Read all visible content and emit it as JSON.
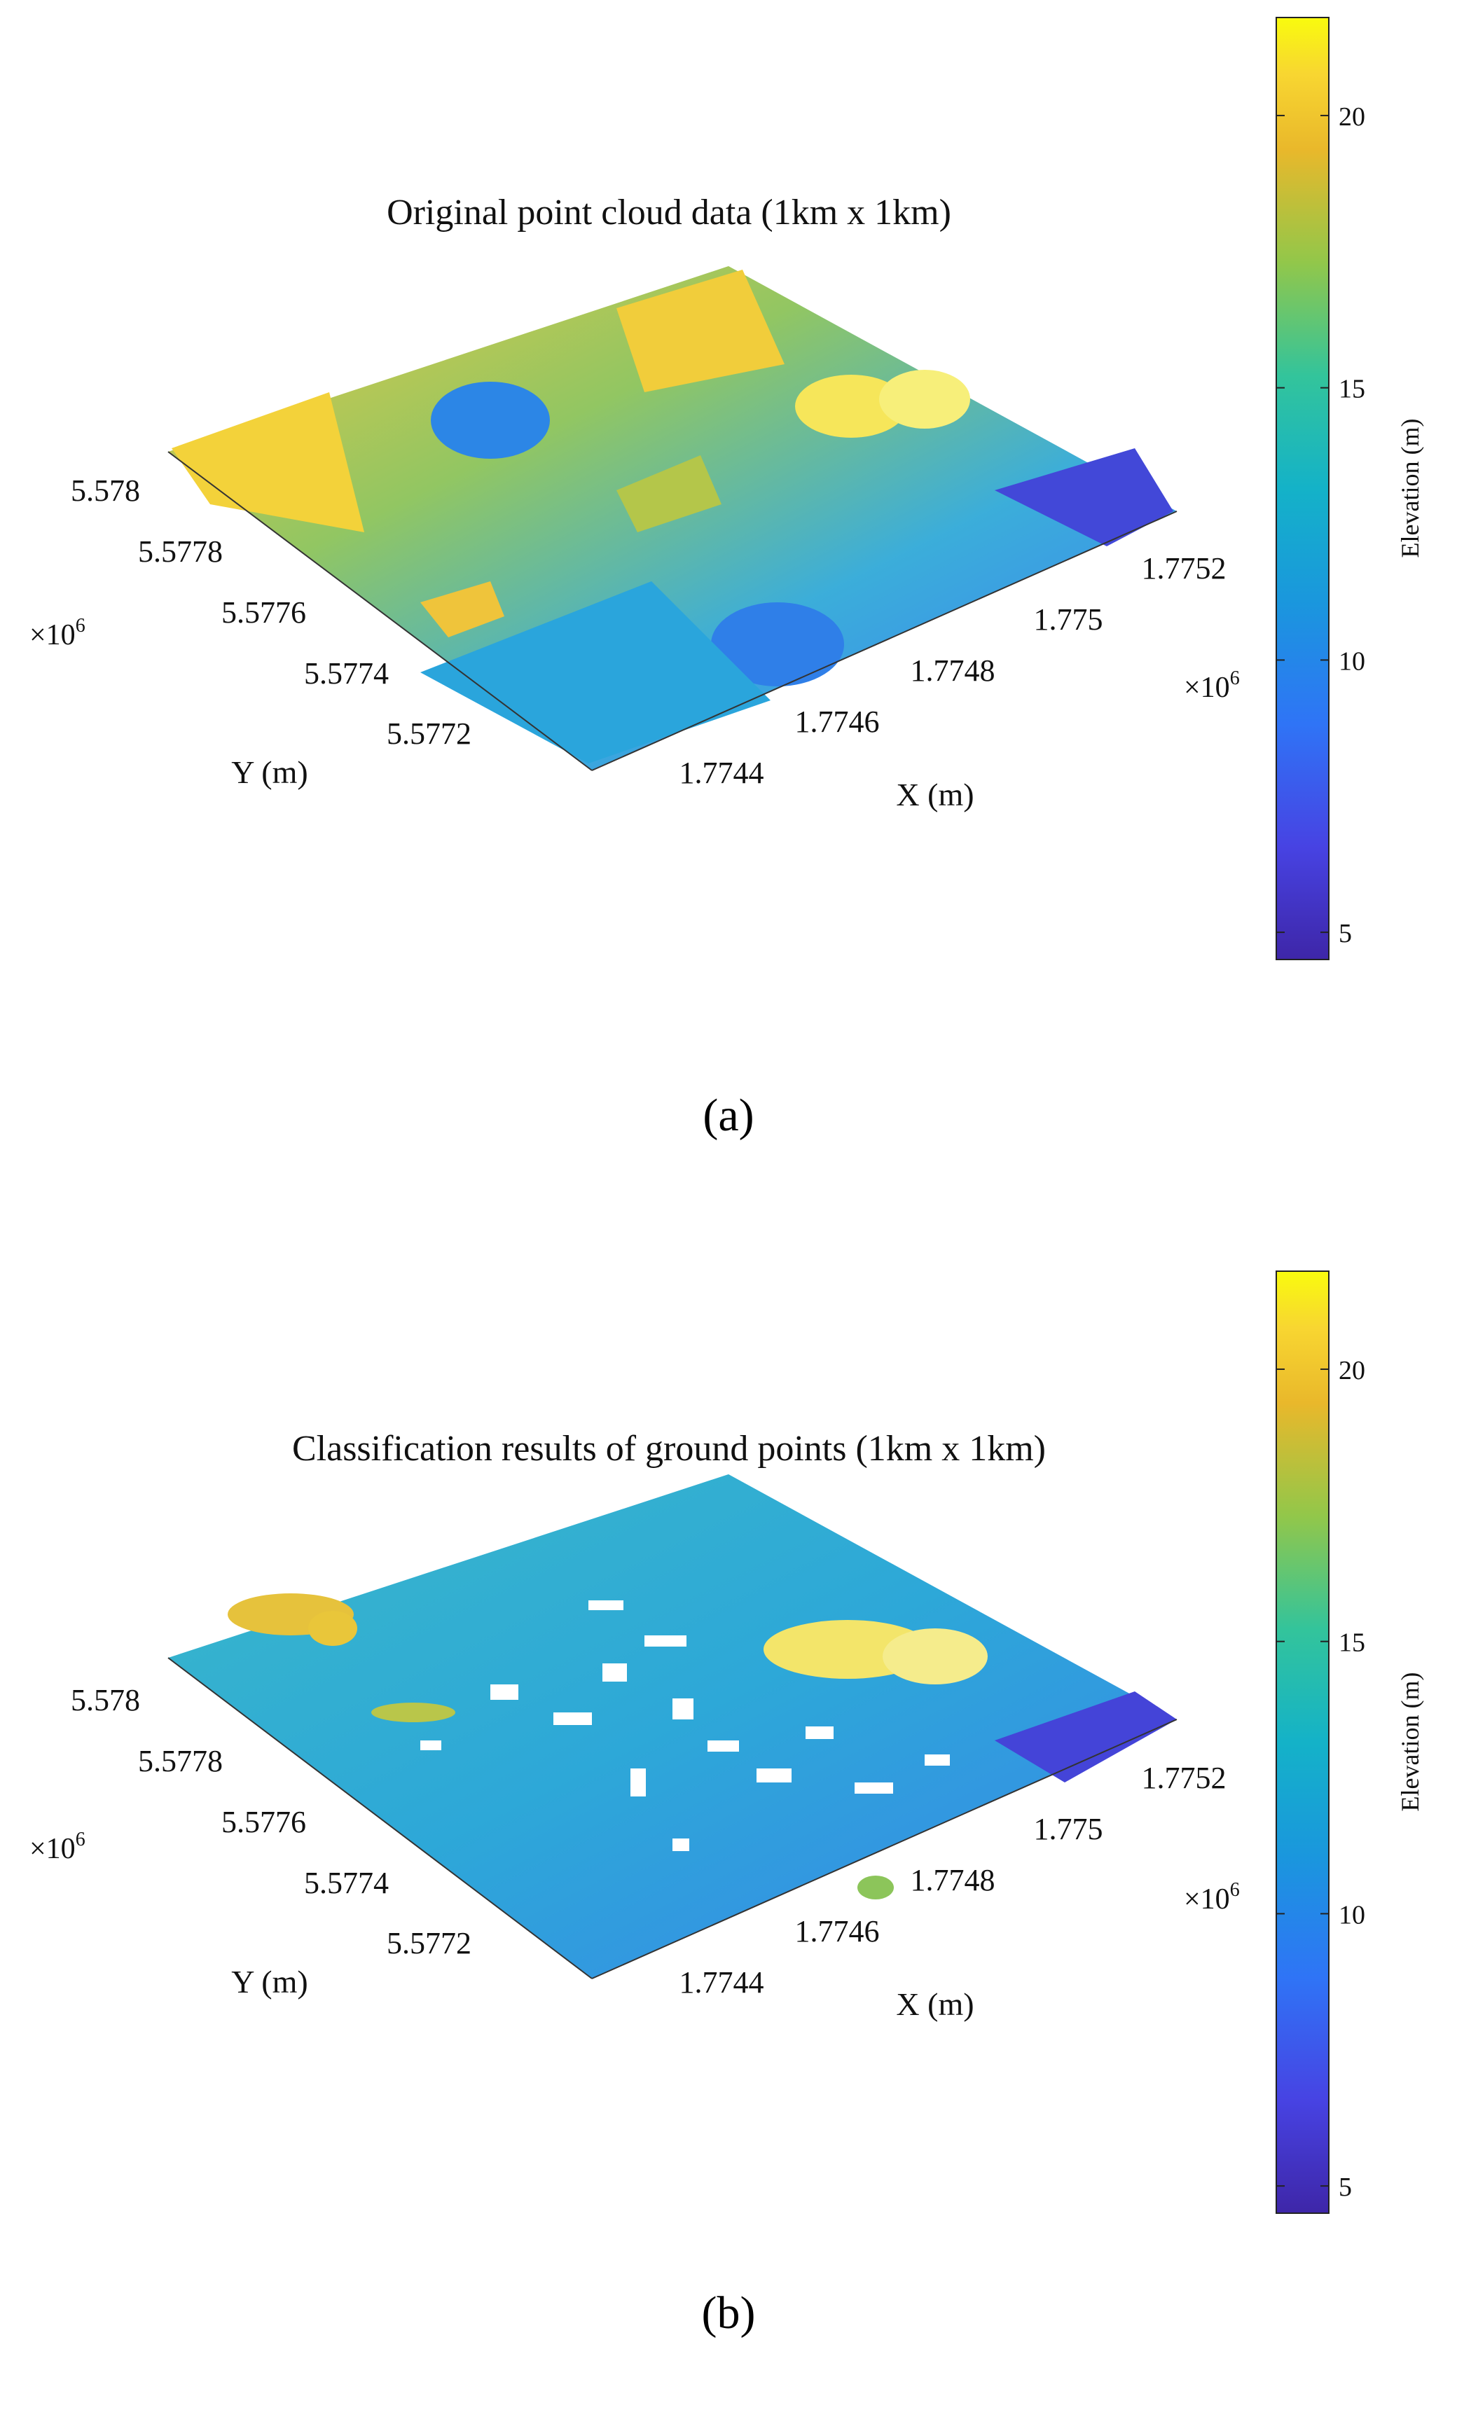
{
  "chart_data": [
    {
      "type": "scatter",
      "subtype": "3d-point-cloud",
      "panel_label": "(a)",
      "title": "Original point cloud data (1km x 1km)",
      "xlabel": "X (m)",
      "ylabel": "Y (m)",
      "x_ticks": [
        "1.7744",
        "1.7746",
        "1.7748",
        "1.775",
        "1.7752"
      ],
      "x_tick_values": [
        1.7744,
        1.7746,
        1.7748,
        1.775,
        1.7752
      ],
      "x_exponent": "×10",
      "x_exponent_power": "6",
      "y_ticks": [
        "5.5772",
        "5.5774",
        "5.5776",
        "5.5778",
        "5.578"
      ],
      "y_tick_values": [
        5.5772,
        5.5774,
        5.5776,
        5.5778,
        5.578
      ],
      "y_exponent": "×10",
      "y_exponent_power": "6",
      "xlim": [
        1.7743,
        1.7753
      ],
      "ylim": [
        5.5771,
        5.5781
      ],
      "colorbar": {
        "label": "Elevation (m)",
        "ticks": [
          "5",
          "10",
          "15",
          "20"
        ],
        "tick_values": [
          5,
          10,
          15,
          20
        ],
        "range": [
          4.5,
          21.8
        ],
        "colormap": "parula"
      }
    },
    {
      "type": "scatter",
      "subtype": "3d-point-cloud",
      "panel_label": "(b)",
      "title": "Classification results of ground points (1km x 1km)",
      "xlabel": "X (m)",
      "ylabel": "Y (m)",
      "x_ticks": [
        "1.7744",
        "1.7746",
        "1.7748",
        "1.775",
        "1.7752"
      ],
      "x_tick_values": [
        1.7744,
        1.7746,
        1.7748,
        1.775,
        1.7752
      ],
      "x_exponent": "×10",
      "x_exponent_power": "6",
      "y_ticks": [
        "5.5772",
        "5.5774",
        "5.5776",
        "5.5778",
        "5.578"
      ],
      "y_tick_values": [
        5.5772,
        5.5774,
        5.5776,
        5.5778,
        5.578
      ],
      "y_exponent": "×10",
      "y_exponent_power": "6",
      "xlim": [
        1.7743,
        1.7753
      ],
      "ylim": [
        5.5771,
        5.5781
      ],
      "colorbar": {
        "label": "Elevation (m)",
        "ticks": [
          "5",
          "10",
          "15",
          "20"
        ],
        "tick_values": [
          5,
          10,
          15,
          20
        ],
        "range": [
          4.5,
          21.8
        ],
        "colormap": "parula"
      }
    }
  ]
}
